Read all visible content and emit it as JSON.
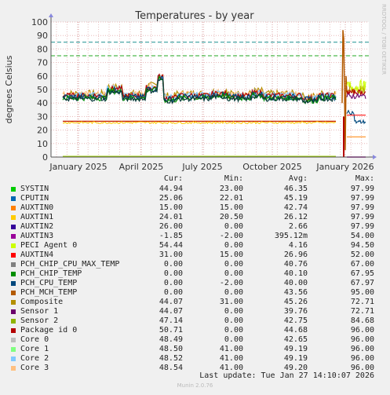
{
  "chart_data": {
    "type": "line",
    "title": "Temperatures - by year",
    "ylabel": "degrees Celsius",
    "side_label": "RRDTOOL / TOBI OETIKER",
    "ylim": [
      0,
      100
    ],
    "yticks": [
      "0",
      "10",
      "20",
      "30",
      "40",
      "50",
      "60",
      "70",
      "80",
      "90",
      "100"
    ],
    "xticks": [
      "January 2025",
      "April 2025",
      "July 2025",
      "October 2025",
      "January 2026"
    ],
    "grid": true,
    "thresholds": [
      {
        "value": 85,
        "color": "#1a8f8f"
      },
      {
        "value": 75,
        "color": "#22aa22"
      }
    ],
    "series": [
      {
        "name": "SYSTIN",
        "color": "#00cc00",
        "cur": "44.94",
        "min": "23.00",
        "avg": "46.35",
        "max": "97.99"
      },
      {
        "name": "CPUTIN",
        "color": "#0066b3",
        "cur": "25.06",
        "min": "22.01",
        "avg": "45.19",
        "max": "97.99"
      },
      {
        "name": "AUXTIN0",
        "color": "#ff8000",
        "cur": "15.00",
        "min": "15.00",
        "avg": "42.74",
        "max": "97.99"
      },
      {
        "name": "AUXTIN1",
        "color": "#ffcc00",
        "cur": "24.01",
        "min": "20.50",
        "avg": "26.12",
        "max": "97.99"
      },
      {
        "name": "AUXTIN2",
        "color": "#330099",
        "cur": "26.00",
        "min": "0.00",
        "avg": "2.66",
        "max": "97.99"
      },
      {
        "name": "AUXTIN3",
        "color": "#990099",
        "cur": "-1.85",
        "min": "-2.00",
        "avg": "395.12m",
        "max": "54.00"
      },
      {
        "name": "PECI Agent 0",
        "color": "#ccff00",
        "cur": "54.44",
        "min": "0.00",
        "avg": "4.16",
        "max": "94.50"
      },
      {
        "name": "AUXTIN4",
        "color": "#ff0000",
        "cur": "31.00",
        "min": "15.00",
        "avg": "26.96",
        "max": "52.00"
      },
      {
        "name": "PCH_CHIP_CPU_MAX_TEMP",
        "color": "#808080",
        "cur": "0.00",
        "min": "0.00",
        "avg": "40.76",
        "max": "67.00"
      },
      {
        "name": "PCH_CHIP_TEMP",
        "color": "#008f00",
        "cur": "0.00",
        "min": "0.00",
        "avg": "40.10",
        "max": "67.95"
      },
      {
        "name": "PCH_CPU_TEMP",
        "color": "#00487d",
        "cur": "0.00",
        "min": "-2.00",
        "avg": "40.00",
        "max": "67.97"
      },
      {
        "name": "PCH_MCH_TEMP",
        "color": "#b35a00",
        "cur": "0.00",
        "min": "0.00",
        "avg": "43.56",
        "max": "95.00"
      },
      {
        "name": "Composite",
        "color": "#b38f00",
        "cur": "44.07",
        "min": "31.00",
        "avg": "45.26",
        "max": "72.71"
      },
      {
        "name": "Sensor 1",
        "color": "#6b006b",
        "cur": "44.07",
        "min": "0.00",
        "avg": "39.76",
        "max": "72.71"
      },
      {
        "name": "Sensor 2",
        "color": "#8fb300",
        "cur": "47.14",
        "min": "0.00",
        "avg": "42.75",
        "max": "84.68"
      },
      {
        "name": "Package id 0",
        "color": "#b30000",
        "cur": "50.71",
        "min": "0.00",
        "avg": "44.68",
        "max": "96.00"
      },
      {
        "name": "Core 0",
        "color": "#bebebe",
        "cur": "48.49",
        "min": "0.00",
        "avg": "42.65",
        "max": "96.00"
      },
      {
        "name": "Core 1",
        "color": "#80ff80",
        "cur": "48.50",
        "min": "41.00",
        "avg": "49.19",
        "max": "96.00"
      },
      {
        "name": "Core 2",
        "color": "#80c9ff",
        "cur": "48.52",
        "min": "41.00",
        "avg": "49.19",
        "max": "96.00"
      },
      {
        "name": "Core 3",
        "color": "#ffc080",
        "cur": "48.54",
        "min": "41.00",
        "avg": "49.20",
        "max": "96.00"
      }
    ]
  },
  "table": {
    "cur": "Cur:",
    "min": "Min:",
    "avg": "Avg:",
    "max": "Max:"
  },
  "footer": {
    "last_update": "Last update: Tue Jan 27 14:10:07 2026",
    "munin": "Munin 2.0.76"
  }
}
